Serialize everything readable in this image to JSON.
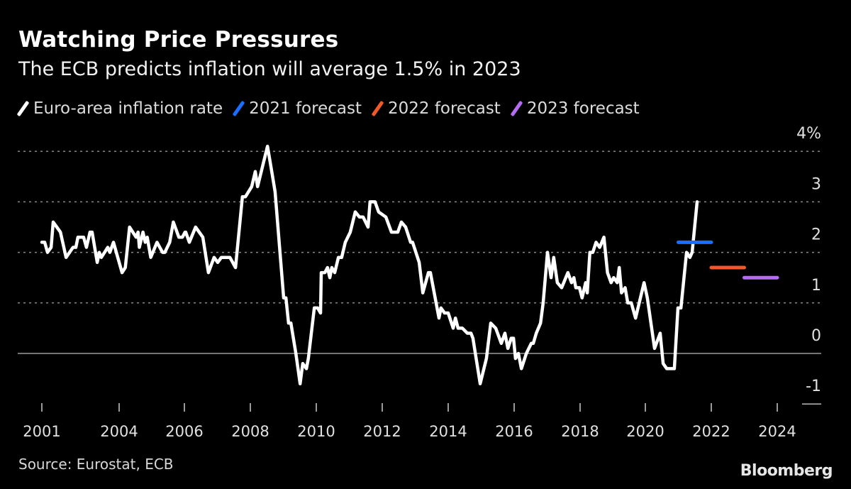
{
  "header": {
    "title": "Watching Price Pressures",
    "subtitle": "The ECB predicts inflation will average 1.5% in 2023"
  },
  "footer": {
    "source": "Source: Eurostat, ECB",
    "logo": "Bloomberg"
  },
  "chart_data": {
    "type": "line",
    "title": "Watching Price Pressures",
    "subtitle": "The ECB predicts inflation will average 1.5% in 2023",
    "xlabel": "",
    "ylabel": "",
    "ylim": [
      -1,
      4
    ],
    "y_ticks": [
      {
        "value": 4,
        "label": "4%"
      },
      {
        "value": 3,
        "label": "3"
      },
      {
        "value": 2,
        "label": "2"
      },
      {
        "value": 1,
        "label": "1"
      },
      {
        "value": 0,
        "label": "0"
      },
      {
        "value": -1,
        "label": "-1"
      }
    ],
    "x_ticks": [
      {
        "value": 2001,
        "label": "2001"
      },
      {
        "value": 2004,
        "label": "2004"
      },
      {
        "value": 2006,
        "label": "2006"
      },
      {
        "value": 2008,
        "label": "2008"
      },
      {
        "value": 2010,
        "label": "2010"
      },
      {
        "value": 2012,
        "label": "2012"
      },
      {
        "value": 2014,
        "label": "2014"
      },
      {
        "value": 2016,
        "label": "2016"
      },
      {
        "value": 2018,
        "label": "2018"
      },
      {
        "value": 2020,
        "label": "2020"
      },
      {
        "value": 2022,
        "label": "2022"
      },
      {
        "value": 2024,
        "label": "2024"
      }
    ],
    "grid": "horizontal dotted",
    "legend_position": "top",
    "colors": {
      "background": "#000000",
      "inflation": "#ffffff",
      "forecast_2021": "#1a6dff",
      "forecast_2022": "#f2592a",
      "forecast_2023": "#b56cf0"
    },
    "series": [
      {
        "name": "Euro-area inflation rate",
        "color": "#ffffff",
        "points": [
          [
            2001.0,
            2.2
          ],
          [
            2001.11,
            2.2
          ],
          [
            2001.22,
            2.0
          ],
          [
            2001.36,
            2.1
          ],
          [
            2001.44,
            2.6
          ],
          [
            2001.58,
            2.5
          ],
          [
            2001.72,
            2.4
          ],
          [
            2001.94,
            1.9
          ],
          [
            2002.21,
            2.1
          ],
          [
            2002.32,
            2.1
          ],
          [
            2002.4,
            2.3
          ],
          [
            2002.62,
            2.3
          ],
          [
            2002.73,
            2.1
          ],
          [
            2002.87,
            2.4
          ],
          [
            2002.95,
            2.4
          ],
          [
            2003.15,
            1.8
          ],
          [
            2003.23,
            2.0
          ],
          [
            2003.31,
            1.9
          ],
          [
            2003.56,
            2.1
          ],
          [
            2003.64,
            2.0
          ],
          [
            2003.78,
            2.2
          ],
          [
            2004.09,
            1.6
          ],
          [
            2004.19,
            1.7
          ],
          [
            2004.32,
            2.5
          ],
          [
            2004.52,
            2.3
          ],
          [
            2004.58,
            2.4
          ],
          [
            2004.62,
            2.1
          ],
          [
            2004.73,
            2.4
          ],
          [
            2004.8,
            2.2
          ],
          [
            2004.86,
            2.3
          ],
          [
            2004.97,
            1.9
          ],
          [
            2005.16,
            2.2
          ],
          [
            2005.33,
            2.0
          ],
          [
            2005.4,
            2.0
          ],
          [
            2005.55,
            2.2
          ],
          [
            2005.66,
            2.6
          ],
          [
            2005.83,
            2.3
          ],
          [
            2005.94,
            2.3
          ],
          [
            2006.02,
            2.4
          ],
          [
            2006.04,
            2.4
          ],
          [
            2006.15,
            2.2
          ],
          [
            2006.34,
            2.5
          ],
          [
            2006.56,
            2.3
          ],
          [
            2006.73,
            1.6
          ],
          [
            2006.9,
            1.9
          ],
          [
            2007.01,
            1.8
          ],
          [
            2007.12,
            1.9
          ],
          [
            2007.38,
            1.9
          ],
          [
            2007.55,
            1.7
          ],
          [
            2007.76,
            3.1
          ],
          [
            2007.85,
            3.1
          ],
          [
            2008.04,
            3.3
          ],
          [
            2008.15,
            3.6
          ],
          [
            2008.22,
            3.3
          ],
          [
            2008.52,
            4.1
          ],
          [
            2008.65,
            3.6
          ],
          [
            2008.75,
            3.2
          ],
          [
            2009.01,
            1.1
          ],
          [
            2009.08,
            1.1
          ],
          [
            2009.16,
            0.6
          ],
          [
            2009.23,
            0.6
          ],
          [
            2009.38,
            0.0
          ],
          [
            2009.51,
            -0.6
          ],
          [
            2009.59,
            -0.2
          ],
          [
            2009.7,
            -0.3
          ],
          [
            2009.76,
            -0.1
          ],
          [
            2009.94,
            0.9
          ],
          [
            2010.04,
            0.9
          ],
          [
            2010.13,
            0.8
          ],
          [
            2010.15,
            1.6
          ],
          [
            2010.26,
            1.6
          ],
          [
            2010.34,
            1.7
          ],
          [
            2010.41,
            1.5
          ],
          [
            2010.47,
            1.7
          ],
          [
            2010.56,
            1.6
          ],
          [
            2010.67,
            1.9
          ],
          [
            2010.77,
            1.9
          ],
          [
            2010.88,
            2.2
          ],
          [
            2011.03,
            2.4
          ],
          [
            2011.18,
            2.8
          ],
          [
            2011.31,
            2.7
          ],
          [
            2011.42,
            2.7
          ],
          [
            2011.57,
            2.5
          ],
          [
            2011.63,
            3.0
          ],
          [
            2011.78,
            3.0
          ],
          [
            2011.89,
            2.8
          ],
          [
            2012.11,
            2.7
          ],
          [
            2012.28,
            2.4
          ],
          [
            2012.47,
            2.4
          ],
          [
            2012.58,
            2.6
          ],
          [
            2012.71,
            2.5
          ],
          [
            2012.86,
            2.2
          ],
          [
            2012.92,
            2.2
          ],
          [
            2013.12,
            1.8
          ],
          [
            2013.23,
            1.2
          ],
          [
            2013.4,
            1.6
          ],
          [
            2013.46,
            1.6
          ],
          [
            2013.72,
            0.7
          ],
          [
            2013.78,
            0.9
          ],
          [
            2013.89,
            0.8
          ],
          [
            2014.0,
            0.8
          ],
          [
            2014.15,
            0.5
          ],
          [
            2014.22,
            0.7
          ],
          [
            2014.3,
            0.5
          ],
          [
            2014.43,
            0.5
          ],
          [
            2014.58,
            0.4
          ],
          [
            2014.69,
            0.4
          ],
          [
            2014.75,
            0.3
          ],
          [
            2014.97,
            -0.6
          ],
          [
            2015.16,
            -0.1
          ],
          [
            2015.29,
            0.6
          ],
          [
            2015.44,
            0.5
          ],
          [
            2015.61,
            0.2
          ],
          [
            2015.72,
            0.4
          ],
          [
            2015.81,
            0.1
          ],
          [
            2015.91,
            0.3
          ],
          [
            2015.98,
            0.3
          ],
          [
            2016.04,
            -0.1
          ],
          [
            2016.13,
            0.0
          ],
          [
            2016.22,
            -0.3
          ],
          [
            2016.37,
            0.0
          ],
          [
            2016.52,
            0.2
          ],
          [
            2016.58,
            0.2
          ],
          [
            2016.67,
            0.4
          ],
          [
            2016.8,
            0.6
          ],
          [
            2016.88,
            1.0
          ],
          [
            2017.01,
            2.0
          ],
          [
            2017.12,
            1.5
          ],
          [
            2017.2,
            1.9
          ],
          [
            2017.31,
            1.4
          ],
          [
            2017.44,
            1.3
          ],
          [
            2017.63,
            1.6
          ],
          [
            2017.74,
            1.4
          ],
          [
            2017.81,
            1.5
          ],
          [
            2017.87,
            1.3
          ],
          [
            2017.98,
            1.3
          ],
          [
            2018.06,
            1.1
          ],
          [
            2018.17,
            1.4
          ],
          [
            2018.22,
            1.2
          ],
          [
            2018.3,
            2.0
          ],
          [
            2018.39,
            2.0
          ],
          [
            2018.49,
            2.2
          ],
          [
            2018.6,
            2.1
          ],
          [
            2018.73,
            2.3
          ],
          [
            2018.84,
            1.6
          ],
          [
            2018.95,
            1.4
          ],
          [
            2019.03,
            1.5
          ],
          [
            2019.14,
            1.4
          ],
          [
            2019.2,
            1.7
          ],
          [
            2019.27,
            1.2
          ],
          [
            2019.38,
            1.3
          ],
          [
            2019.46,
            1.0
          ],
          [
            2019.57,
            1.0
          ],
          [
            2019.7,
            0.7
          ],
          [
            2019.96,
            1.4
          ],
          [
            2020.06,
            1.1
          ],
          [
            2020.28,
            0.1
          ],
          [
            2020.45,
            0.4
          ],
          [
            2020.54,
            -0.2
          ],
          [
            2020.65,
            -0.3
          ],
          [
            2020.88,
            -0.3
          ],
          [
            2020.99,
            0.9
          ],
          [
            2021.08,
            0.9
          ],
          [
            2021.25,
            2.0
          ],
          [
            2021.35,
            1.9
          ],
          [
            2021.42,
            2.0
          ],
          [
            2021.57,
            3.0
          ]
        ]
      },
      {
        "name": "2021 forecast",
        "color": "#1a6dff",
        "points": [
          [
            2021.0,
            2.2
          ],
          [
            2022.0,
            2.2
          ]
        ]
      },
      {
        "name": "2022 forecast",
        "color": "#f2592a",
        "points": [
          [
            2022.0,
            1.7
          ],
          [
            2023.0,
            1.7
          ]
        ]
      },
      {
        "name": "2023 forecast",
        "color": "#b56cf0",
        "points": [
          [
            2023.0,
            1.5
          ],
          [
            2024.0,
            1.5
          ]
        ]
      }
    ]
  }
}
